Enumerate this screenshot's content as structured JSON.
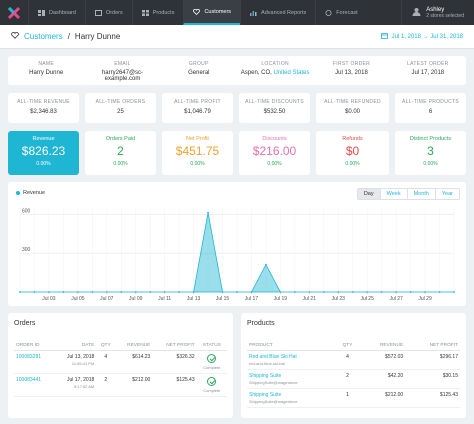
{
  "nav": {
    "items": [
      {
        "label": "Dashboard",
        "icon": "dashboard-icon"
      },
      {
        "label": "Orders",
        "icon": "orders-icon"
      },
      {
        "label": "Products",
        "icon": "products-icon"
      },
      {
        "label": "Customers",
        "icon": "heart-icon",
        "active": true
      },
      {
        "label": "Advanced Reports",
        "icon": "reports-icon"
      },
      {
        "label": "Forecast",
        "icon": "forecast-icon"
      }
    ],
    "user_name": "Ashley",
    "user_sub": "2 stores selected"
  },
  "header": {
    "crumb_link": "Customers",
    "crumb_sep": "/",
    "crumb_current": "Harry Dunne",
    "date_range": "Jul 1, 2018 → Jul 31, 2018"
  },
  "info": {
    "name_label": "NAME",
    "name": "Harry Dunne",
    "email_label": "EMAIL",
    "email": "harry2647@sc-example.com",
    "group_label": "GROUP",
    "group": "General",
    "location_label": "LOCATION",
    "location_prefix": "Aspen, CO,",
    "location_country": "United States",
    "first_order_label": "FIRST ORDER",
    "first_order": "Jul 13, 2018",
    "latest_order_label": "LATEST ORDER",
    "latest_order": "Jul 17, 2018"
  },
  "alltime": [
    {
      "label": "ALL-TIME REVENUE",
      "value": "$2,346.83"
    },
    {
      "label": "ALL-TIME ORDERS",
      "value": "25"
    },
    {
      "label": "ALL-TIME PROFIT",
      "value": "$1,046.79"
    },
    {
      "label": "ALL-TIME DISCOUNTS",
      "value": "$532.50"
    },
    {
      "label": "ALL-TIME REFUNDED",
      "value": "$0.00"
    },
    {
      "label": "ALL-TIME PRODUCTS",
      "value": "6"
    }
  ],
  "kpis": [
    {
      "title": "Revenue",
      "value": "$826.23",
      "pct": "0.00%",
      "color": "#ffffff"
    },
    {
      "title": "Orders Paid",
      "value": "2",
      "pct": "0.00%",
      "color": "#2ca85a"
    },
    {
      "title": "Net Profit",
      "value": "$451.75",
      "pct": "0.00%",
      "color": "#f0a030"
    },
    {
      "title": "Discounts",
      "value": "$216.00",
      "pct": "0.00%",
      "color": "#e86fb4"
    },
    {
      "title": "Refunds",
      "value": "$0",
      "pct": "0.00%",
      "color": "#e84a4a"
    },
    {
      "title": "Distinct Products",
      "value": "3",
      "pct": "0.00%",
      "color": "#2ca85a"
    }
  ],
  "chart_controls": {
    "legend": "Revenue",
    "buttons": [
      "Day",
      "Week",
      "Month",
      "Year"
    ],
    "selected": "Day"
  },
  "chart_data": {
    "type": "area",
    "series": [
      {
        "name": "Revenue",
        "values": [
          0,
          0,
          0,
          0,
          0,
          0,
          0,
          0,
          0,
          0,
          0,
          0,
          0,
          614.23,
          0,
          0,
          0,
          212,
          0,
          0,
          0,
          0,
          0,
          0,
          0,
          0,
          0,
          0,
          0,
          0,
          0
        ]
      }
    ],
    "x": [
      "Jul 1",
      "Jul 2",
      "Jul 3",
      "Jul 4",
      "Jul 5",
      "Jul 6",
      "Jul 7",
      "Jul 8",
      "Jul 9",
      "Jul 10",
      "Jul 11",
      "Jul 12",
      "Jul 13",
      "Jul 14",
      "Jul 15",
      "Jul 16",
      "Jul 17",
      "Jul 18",
      "Jul 19",
      "Jul 20",
      "Jul 21",
      "Jul 22",
      "Jul 23",
      "Jul 24",
      "Jul 25",
      "Jul 26",
      "Jul 27",
      "Jul 28",
      "Jul 29",
      "Jul 30",
      "Jul 31"
    ],
    "x_ticks": [
      "Jul 03",
      "Jul 05",
      "Jul 07",
      "Jul 09",
      "Jul 11",
      "Jul 13",
      "Jul 15",
      "Jul 17",
      "Jul 19",
      "Jul 21",
      "Jul 23",
      "Jul 25",
      "Jul 27",
      "Jul 29"
    ],
    "y_ticks": [
      "600",
      "300"
    ],
    "ylim": [
      0,
      650
    ],
    "grid": true,
    "color": "#1fb6d4"
  },
  "orders": {
    "title": "Orders",
    "headers": [
      "ORDER ID",
      "DATE",
      "QTY",
      "REVENUE",
      "NET PROFIT",
      "STATUS"
    ],
    "rows": [
      {
        "id": "100083281",
        "date": "Jul 13, 2018",
        "time": "11:55:41 PM",
        "qty": "4",
        "revenue": "$614.23",
        "profit": "$326.32",
        "status": "Complete"
      },
      {
        "id": "100083441",
        "date": "Jul 17, 2018",
        "time": "9:17:52 AM",
        "qty": "2",
        "revenue": "$212.00",
        "profit": "$125.43",
        "status": "Complete"
      }
    ]
  },
  "products": {
    "title": "Products",
    "headers": [
      "PRODUCT",
      "QTY",
      "REVENUE",
      "NET PROFIT"
    ],
    "rows": [
      {
        "name": "Red and Blue Ski Hat",
        "sku": "red-and-blue-ski-hat",
        "qty": "4",
        "revenue": "$572.03",
        "profit": "$296.17"
      },
      {
        "name": "Shipping Suite",
        "sku": "ShippingSuite@magentoce",
        "qty": "2",
        "revenue": "$42.20",
        "profit": "$30.15"
      },
      {
        "name": "Shipping Suite",
        "sku": "ShippingSuite@magentoce",
        "qty": "1",
        "revenue": "$212.00",
        "profit": "$125.43"
      }
    ]
  }
}
